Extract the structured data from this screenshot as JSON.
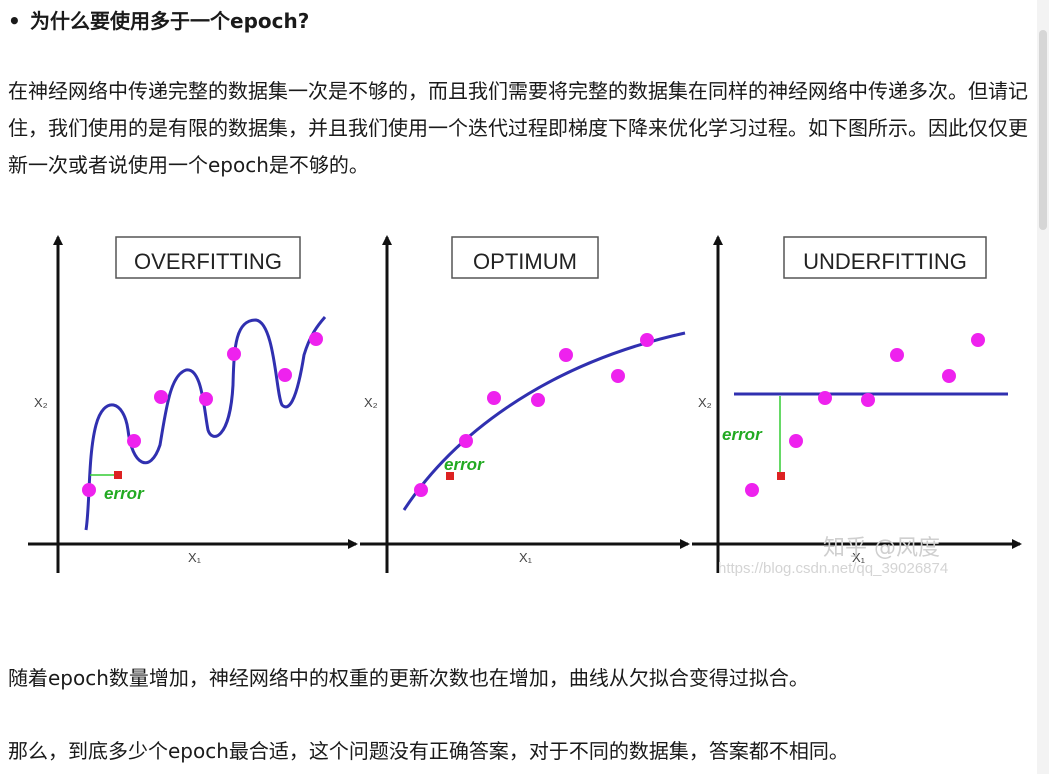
{
  "heading": {
    "bullet": "•",
    "text": "为什么要使用多于一个epoch?"
  },
  "paragraphs": [
    "在神经网络中传递完整的数据集一次是不够的，而且我们需要将完整的数据集在同样的神经网络中传递多次。但请记住，我们使用的是有限的数据集，并且我们使用一个迭代过程即梯度下降来优化学习过程。如下图所示。因此仅仅更新一次或者说使用一个epoch是不够的。",
    "随着epoch数量增加，神经网络中的权重的更新次数也在增加，曲线从欠拟合变得过拟合。",
    "那么，到底多少个epoch最合适，这个问题没有正确答案，对于不同的数据集，答案都不相同。"
  ],
  "figure": {
    "panels": [
      {
        "title": "OVERFITTING",
        "xlabel": "X₁",
        "ylabel": "X₂",
        "error_label": "error"
      },
      {
        "title": "OPTIMUM",
        "xlabel": "X₁",
        "ylabel": "X₂",
        "error_label": "error"
      },
      {
        "title": "UNDERFITTING",
        "xlabel": "X₁",
        "ylabel": "X₂",
        "error_label": "error"
      }
    ],
    "watermark_brand": "知乎 @风度",
    "watermark_url": "https://blog.csdn.net/qq_39026874",
    "colors": {
      "curve": "#3030b0",
      "point": "#ee22ee",
      "error_line": "#33cc33",
      "error_text": "#22aa22",
      "error_mark": "#dd2222"
    }
  }
}
